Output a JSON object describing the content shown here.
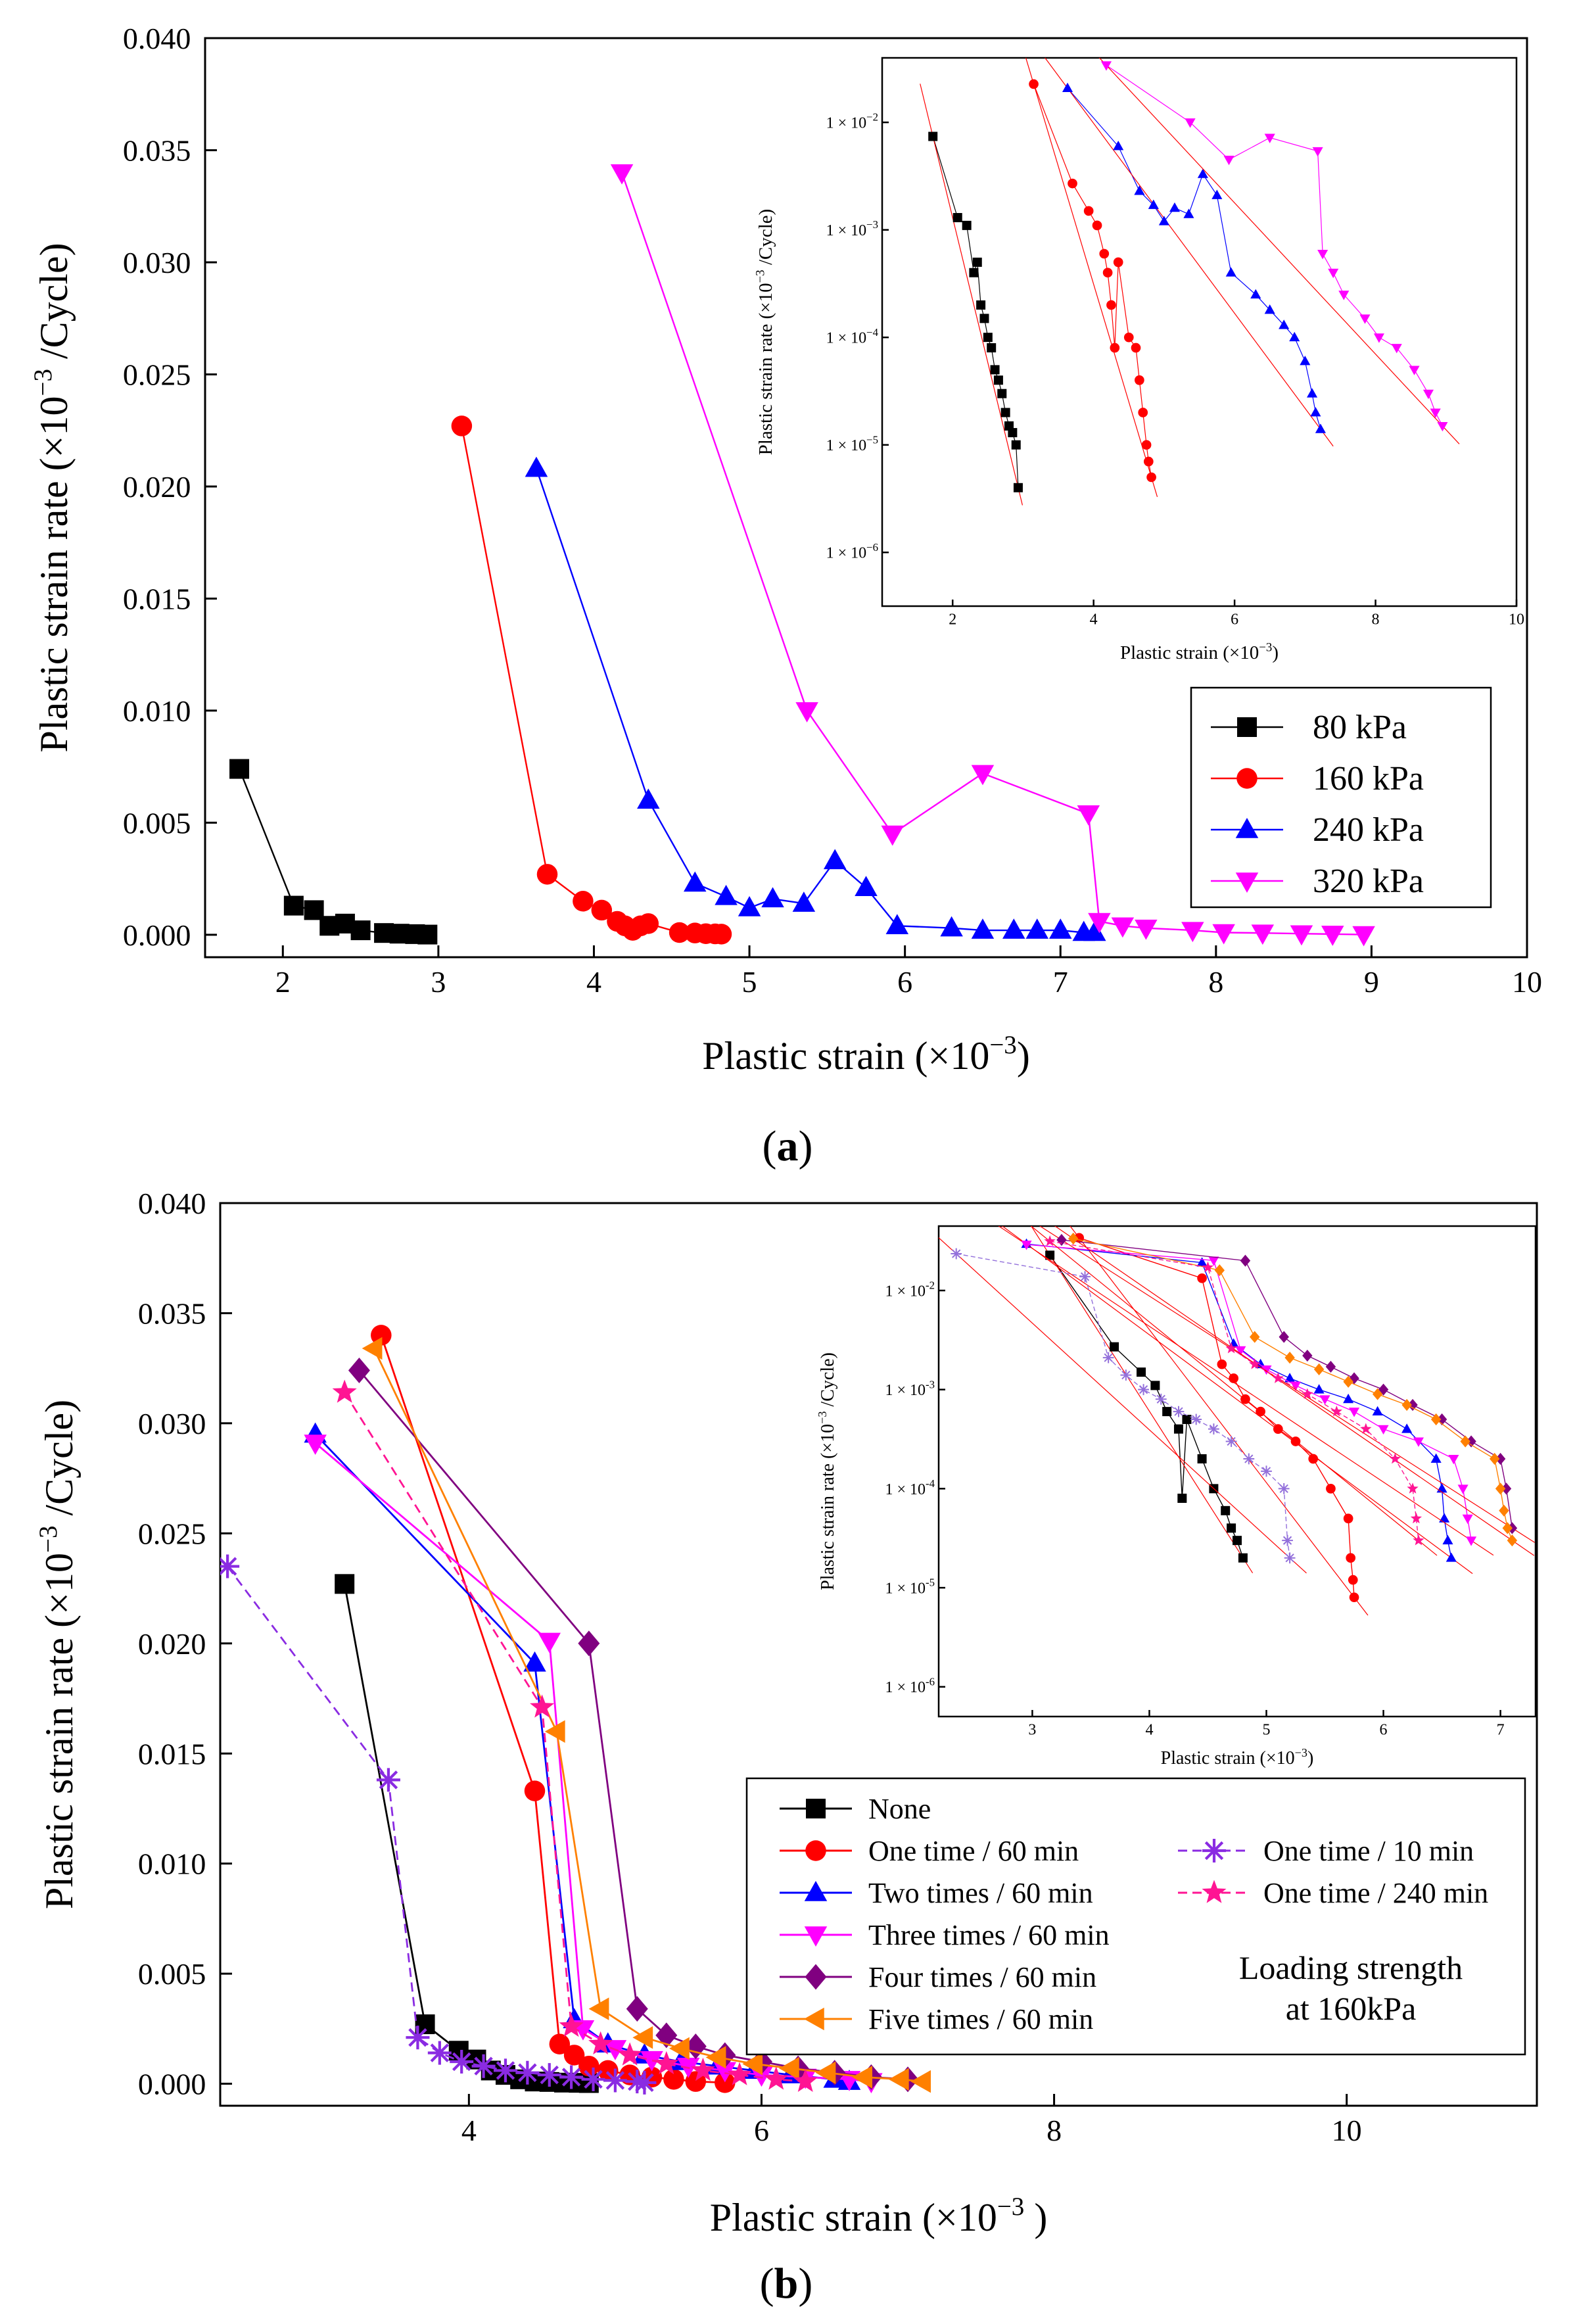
{
  "chart_data": [
    {
      "id": "a",
      "type": "line",
      "panel_label": "a",
      "xlabel": "Plastic strain (×10",
      "xlabel_sup": "−3",
      "xlabel_tail": ")",
      "ylabel": "Plastic strain rate (×10",
      "ylabel_sup": "−3",
      "ylabel_tail": " /Cycle)",
      "xlim": [
        1.5,
        10
      ],
      "ylim": [
        -0.001,
        0.04
      ],
      "xticks": [
        "2",
        "3",
        "4",
        "5",
        "6",
        "7",
        "8",
        "9",
        "10"
      ],
      "yticks": [
        "0.000",
        "0.005",
        "0.010",
        "0.015",
        "0.020",
        "0.025",
        "0.030",
        "0.035",
        "0.040"
      ],
      "legend_position": "right, middle",
      "series": [
        {
          "name": "80 kPa",
          "color": "#000000",
          "marker": "square",
          "x": [
            1.72,
            2.07,
            2.2,
            2.3,
            2.4,
            2.5,
            2.65,
            2.75,
            2.85,
            2.93
          ],
          "y": [
            0.0074,
            0.0013,
            0.0011,
            0.0004,
            0.0005,
            0.0002,
            8e-05,
            5e-05,
            3e-05,
            1e-05
          ]
        },
        {
          "name": "160 kPa",
          "color": "#ff0000",
          "marker": "circle",
          "x": [
            3.15,
            3.7,
            3.93,
            4.05,
            4.15,
            4.2,
            4.25,
            4.3,
            4.35,
            4.55,
            4.65,
            4.72,
            4.78,
            4.82
          ],
          "y": [
            0.0227,
            0.0027,
            0.0015,
            0.0011,
            0.0006,
            0.0004,
            0.0002,
            0.0004,
            0.0005,
            0.0001,
            8e-05,
            5e-05,
            4e-05,
            3e-05
          ]
        },
        {
          "name": "240 kPa",
          "color": "#0000ff",
          "marker": "triangle-up",
          "x": [
            3.63,
            4.35,
            4.65,
            4.85,
            5.0,
            5.15,
            5.35,
            5.55,
            5.75,
            5.95,
            6.3,
            6.5,
            6.7,
            6.85,
            7.0,
            7.15,
            7.22
          ],
          "y": [
            0.0208,
            0.006,
            0.0023,
            0.0017,
            0.0012,
            0.0016,
            0.0014,
            0.0033,
            0.0021,
            0.0004,
            0.0003,
            0.0002,
            0.0002,
            0.0002,
            0.0002,
            0.0001,
            0.0001
          ]
        },
        {
          "name": "320 kPa",
          "color": "#ff00ff",
          "marker": "triangle-down",
          "x": [
            4.18,
            5.37,
            5.92,
            6.5,
            7.18,
            7.25,
            7.4,
            7.55,
            7.85,
            8.05,
            8.3,
            8.55,
            8.75,
            8.95
          ],
          "y": [
            0.034,
            0.01,
            0.0045,
            0.0072,
            0.0054,
            0.0006,
            0.0004,
            0.0003,
            0.0002,
            0.0001,
            8e-05,
            5e-05,
            3e-05,
            1e-05
          ]
        }
      ]
    },
    {
      "id": "a-inset",
      "type": "line",
      "scale": "log-y",
      "xlabel": "Plastic strain (×10",
      "xlabel_sup": "−3",
      "xlabel_tail": ")",
      "ylabel": "Plastic strain rate (×10",
      "ylabel_sup": "−3",
      "ylabel_tail": " /Cycle)",
      "xlim": [
        1,
        10
      ],
      "ylim_log": [
        -6.5,
        -1.4
      ],
      "xticks": [
        "2",
        "4",
        "6",
        "8",
        "10"
      ],
      "yticks": [
        "1 × 10",
        "1 × 10",
        "1 × 10",
        "1 × 10",
        "1 × 10"
      ],
      "ytick_exps": [
        "−2",
        "−3",
        "−4",
        "−5",
        "−6"
      ],
      "series": [
        {
          "color": "#000000",
          "marker": "square",
          "x": [
            1.72,
            2.07,
            2.2,
            2.3,
            2.35,
            2.4,
            2.45,
            2.5,
            2.55,
            2.6,
            2.65,
            2.7,
            2.75,
            2.8,
            2.85,
            2.9,
            2.93
          ],
          "y": [
            0.0074,
            0.0013,
            0.0011,
            0.0004,
            0.0005,
            0.0002,
            0.00015,
            0.0001,
            8e-05,
            5e-05,
            4e-05,
            3e-05,
            2e-05,
            1.5e-05,
            1.3e-05,
            1e-05,
            4e-06
          ]
        },
        {
          "color": "#ff0000",
          "marker": "circle",
          "x": [
            3.15,
            3.7,
            3.93,
            4.05,
            4.15,
            4.2,
            4.25,
            4.3,
            4.35,
            4.5,
            4.6,
            4.65,
            4.7,
            4.75,
            4.78,
            4.82
          ],
          "y": [
            0.0227,
            0.0027,
            0.0015,
            0.0011,
            0.0006,
            0.0004,
            0.0002,
            8e-05,
            0.0005,
            0.0001,
            8e-05,
            4e-05,
            2e-05,
            1e-05,
            7e-06,
            5e-06
          ]
        },
        {
          "color": "#0000ff",
          "marker": "triangle-up",
          "x": [
            3.63,
            4.35,
            4.65,
            4.85,
            5.0,
            5.15,
            5.35,
            5.55,
            5.75,
            5.95,
            6.3,
            6.5,
            6.7,
            6.85,
            7.0,
            7.1,
            7.15,
            7.22
          ],
          "y": [
            0.0208,
            0.006,
            0.0023,
            0.0017,
            0.0012,
            0.0016,
            0.0014,
            0.0033,
            0.0021,
            0.0004,
            0.00025,
            0.00018,
            0.00013,
            0.0001,
            6e-05,
            3e-05,
            2e-05,
            1.4e-05
          ]
        },
        {
          "color": "#ff00ff",
          "marker": "triangle-down",
          "x": [
            4.18,
            5.37,
            5.92,
            6.5,
            7.18,
            7.25,
            7.4,
            7.55,
            7.85,
            8.05,
            8.3,
            8.55,
            8.75,
            8.85,
            8.95
          ],
          "y": [
            0.034,
            0.01,
            0.0045,
            0.0072,
            0.0054,
            0.0006,
            0.0004,
            0.00025,
            0.00015,
            0.0001,
            8e-05,
            5e-05,
            3e-05,
            2e-05,
            1.5e-05
          ]
        }
      ]
    },
    {
      "id": "b",
      "type": "line",
      "panel_label": "b",
      "xlabel": "Plastic strain (×10",
      "xlabel_sup": "−3",
      "xlabel_tail": " )",
      "ylabel": "Plastic strain rate (×10",
      "ylabel_sup": "−3",
      "ylabel_tail": " /Cycle)",
      "xlim": [
        2.3,
        11.3
      ],
      "ylim": [
        -0.001,
        0.04
      ],
      "xticks": [
        "4",
        "6",
        "8",
        "10"
      ],
      "yticks": [
        "0.000",
        "0.005",
        "0.010",
        "0.015",
        "0.020",
        "0.025",
        "0.030",
        "0.035",
        "0.040"
      ],
      "annotation": [
        "Loading strength",
        "at 160kPa"
      ],
      "series": [
        {
          "name": "None",
          "color": "#000000",
          "marker": "square",
          "dash": false,
          "x": [
            3.15,
            3.7,
            3.93,
            4.05,
            4.15,
            4.25,
            4.35,
            4.45,
            4.55,
            4.65,
            4.75,
            4.82
          ],
          "y": [
            0.0227,
            0.0027,
            0.0015,
            0.0011,
            0.0006,
            0.0004,
            0.0002,
            0.0001,
            8e-05,
            5e-05,
            4e-05,
            3e-05
          ]
        },
        {
          "name": "One time / 60 min",
          "color": "#ff0000",
          "marker": "circle",
          "dash": false,
          "x": [
            3.4,
            4.45,
            4.62,
            4.72,
            4.82,
            4.95,
            5.1,
            5.25,
            5.4,
            5.55,
            5.75
          ],
          "y": [
            0.034,
            0.0133,
            0.0018,
            0.0013,
            0.0008,
            0.0006,
            0.0004,
            0.0003,
            0.0002,
            0.0001,
            5e-05
          ]
        },
        {
          "name": "Two times / 60 min",
          "color": "#0000ff",
          "marker": "triangle-up",
          "dash": false,
          "x": [
            2.95,
            4.45,
            4.72,
            4.95,
            5.2,
            5.45,
            5.7,
            5.95,
            6.2,
            6.5,
            6.6
          ],
          "y": [
            0.0295,
            0.0191,
            0.0029,
            0.0018,
            0.0013,
            0.001,
            0.0008,
            0.0006,
            0.0004,
            0.0002,
            0.0001
          ]
        },
        {
          "name": "Three times / 60 min",
          "color": "#ff00ff",
          "marker": "triangle-down",
          "dash": false,
          "x": [
            2.95,
            4.55,
            4.78,
            5.0,
            5.25,
            5.5,
            5.75,
            6.0,
            6.3,
            6.6,
            6.75
          ],
          "y": [
            0.0291,
            0.0201,
            0.0025,
            0.0016,
            0.0011,
            0.0008,
            0.0006,
            0.0004,
            0.0003,
            0.0002,
            0.0001
          ]
        },
        {
          "name": "Four times / 60 min",
          "color": "#800080",
          "marker": "diamond",
          "dash": false,
          "x": [
            3.25,
            4.82,
            5.15,
            5.35,
            5.55,
            5.75,
            6.0,
            6.25,
            6.5,
            6.75,
            7.0
          ],
          "y": [
            0.0324,
            0.02,
            0.0034,
            0.0022,
            0.0017,
            0.0013,
            0.001,
            0.0007,
            0.0005,
            0.0003,
            0.0002
          ]
        },
        {
          "name": "Five times / 60 min",
          "color": "#ff8000",
          "marker": "triangle-left",
          "dash": false,
          "x": [
            3.35,
            4.6,
            4.9,
            5.2,
            5.45,
            5.7,
            5.95,
            6.2,
            6.45,
            6.7,
            6.95,
            7.1
          ],
          "y": [
            0.0334,
            0.016,
            0.0034,
            0.0021,
            0.0016,
            0.0012,
            0.0009,
            0.0007,
            0.0005,
            0.0003,
            0.0002,
            0.0001
          ]
        },
        {
          "name": "One time / 10 min",
          "color": "#8a2be2",
          "marker": "asterisk",
          "dash": true,
          "x": [
            2.35,
            3.45,
            3.65,
            3.8,
            3.95,
            4.1,
            4.25,
            4.4,
            4.55,
            4.7,
            4.85,
            5.0,
            5.15,
            5.2
          ],
          "y": [
            0.0235,
            0.0138,
            0.0021,
            0.0014,
            0.001,
            0.0008,
            0.0006,
            0.0005,
            0.0004,
            0.0003,
            0.0002,
            0.00015,
            0.0001,
            5e-05
          ]
        },
        {
          "name": "One time / 240 min",
          "color": "#ff1493",
          "marker": "star",
          "dash": true,
          "x": [
            3.15,
            4.5,
            4.7,
            4.9,
            5.1,
            5.35,
            5.6,
            5.85,
            6.1,
            6.3
          ],
          "y": [
            0.0314,
            0.0171,
            0.0026,
            0.0018,
            0.0013,
            0.0009,
            0.0006,
            0.0004,
            0.0002,
            0.0001
          ]
        }
      ]
    },
    {
      "id": "b-inset",
      "type": "line",
      "scale": "log-y",
      "xlabel": "Plastic strain (×10",
      "xlabel_sup": "−3",
      "xlabel_tail": ")",
      "ylabel": "Plastic strain rate (×10",
      "ylabel_sup": "−3",
      "ylabel_tail": " /Cycle)",
      "xlim": [
        2.2,
        7.3
      ],
      "ylim_log": [
        -6.3,
        -1.35
      ],
      "xticks": [
        "3",
        "4",
        "5",
        "6",
        "7"
      ],
      "yticks": [
        "1 × 10",
        "1 × 10",
        "1 × 10",
        "1 × 10",
        "1 × 10"
      ],
      "ytick_exps": [
        "-2",
        "-3",
        "-4",
        "-5",
        "-6"
      ],
      "series": [
        {
          "color": "#000000",
          "marker": "square",
          "dash": false,
          "x": [
            3.15,
            3.7,
            3.93,
            4.05,
            4.15,
            4.25,
            4.28,
            4.32,
            4.45,
            4.55,
            4.65,
            4.7,
            4.75,
            4.8
          ],
          "y": [
            0.0227,
            0.0027,
            0.0015,
            0.0011,
            0.0006,
            0.0004,
            8e-05,
            0.0005,
            0.0002,
            0.0001,
            6e-05,
            4e-05,
            3e-05,
            2e-05
          ]
        },
        {
          "color": "#ff0000",
          "marker": "circle",
          "dash": false,
          "x": [
            3.4,
            4.45,
            4.62,
            4.72,
            4.82,
            4.95,
            5.1,
            5.25,
            5.4,
            5.55,
            5.7,
            5.72,
            5.74,
            5.75
          ],
          "y": [
            0.034,
            0.0133,
            0.0018,
            0.0013,
            0.0008,
            0.0006,
            0.0004,
            0.0003,
            0.0002,
            0.0001,
            5e-05,
            2e-05,
            1.2e-05,
            8e-06
          ]
        },
        {
          "color": "#0000ff",
          "marker": "triangle-up",
          "dash": false,
          "x": [
            2.95,
            4.45,
            4.72,
            4.95,
            5.2,
            5.45,
            5.7,
            5.95,
            6.2,
            6.45,
            6.5,
            6.52,
            6.55,
            6.58
          ],
          "y": [
            0.0295,
            0.0191,
            0.0029,
            0.0018,
            0.0013,
            0.001,
            0.0008,
            0.0006,
            0.0004,
            0.0002,
            0.0001,
            5e-05,
            3e-05,
            2e-05
          ]
        },
        {
          "color": "#ff00ff",
          "marker": "triangle-down",
          "dash": false,
          "x": [
            2.95,
            4.55,
            4.78,
            5.0,
            5.25,
            5.5,
            5.75,
            6.0,
            6.3,
            6.6,
            6.68,
            6.72,
            6.75
          ],
          "y": [
            0.0291,
            0.0201,
            0.0025,
            0.0016,
            0.0011,
            0.0008,
            0.0006,
            0.0004,
            0.0003,
            0.0002,
            0.0001,
            5e-05,
            3e-05
          ]
        },
        {
          "color": "#800080",
          "marker": "diamond",
          "dash": false,
          "x": [
            3.25,
            4.82,
            5.15,
            5.35,
            5.55,
            5.75,
            6.0,
            6.25,
            6.5,
            6.75,
            7.0,
            7.05,
            7.1
          ],
          "y": [
            0.0324,
            0.02,
            0.0034,
            0.0022,
            0.0017,
            0.0013,
            0.001,
            0.0007,
            0.0005,
            0.0003,
            0.0002,
            0.0001,
            4e-05
          ]
        },
        {
          "color": "#ff8000",
          "marker": "diamond",
          "dash": false,
          "x": [
            3.35,
            4.6,
            4.9,
            5.2,
            5.45,
            5.7,
            5.95,
            6.2,
            6.45,
            6.7,
            6.95,
            7.0,
            7.03,
            7.06,
            7.1
          ],
          "y": [
            0.0334,
            0.016,
            0.0034,
            0.0021,
            0.0016,
            0.0012,
            0.0009,
            0.0007,
            0.0005,
            0.0003,
            0.0002,
            0.0001,
            6e-05,
            4e-05,
            3e-05
          ]
        },
        {
          "color": "#9370db",
          "marker": "asterisk",
          "dash": true,
          "x": [
            2.35,
            3.45,
            3.65,
            3.8,
            3.95,
            4.1,
            4.25,
            4.4,
            4.55,
            4.7,
            4.85,
            5.0,
            5.15,
            5.18,
            5.2
          ],
          "y": [
            0.0235,
            0.0138,
            0.0021,
            0.0014,
            0.001,
            0.0008,
            0.0006,
            0.0005,
            0.0004,
            0.0003,
            0.0002,
            0.00015,
            0.0001,
            3e-05,
            2e-05
          ]
        },
        {
          "color": "#ff1493",
          "marker": "star",
          "dash": true,
          "x": [
            3.15,
            4.5,
            4.7,
            4.9,
            5.1,
            5.35,
            5.6,
            5.85,
            6.1,
            6.25,
            6.28,
            6.3
          ],
          "y": [
            0.0314,
            0.0171,
            0.0026,
            0.0018,
            0.0013,
            0.0009,
            0.0006,
            0.0004,
            0.0002,
            0.0001,
            5e-05,
            3e-05
          ]
        }
      ]
    }
  ]
}
